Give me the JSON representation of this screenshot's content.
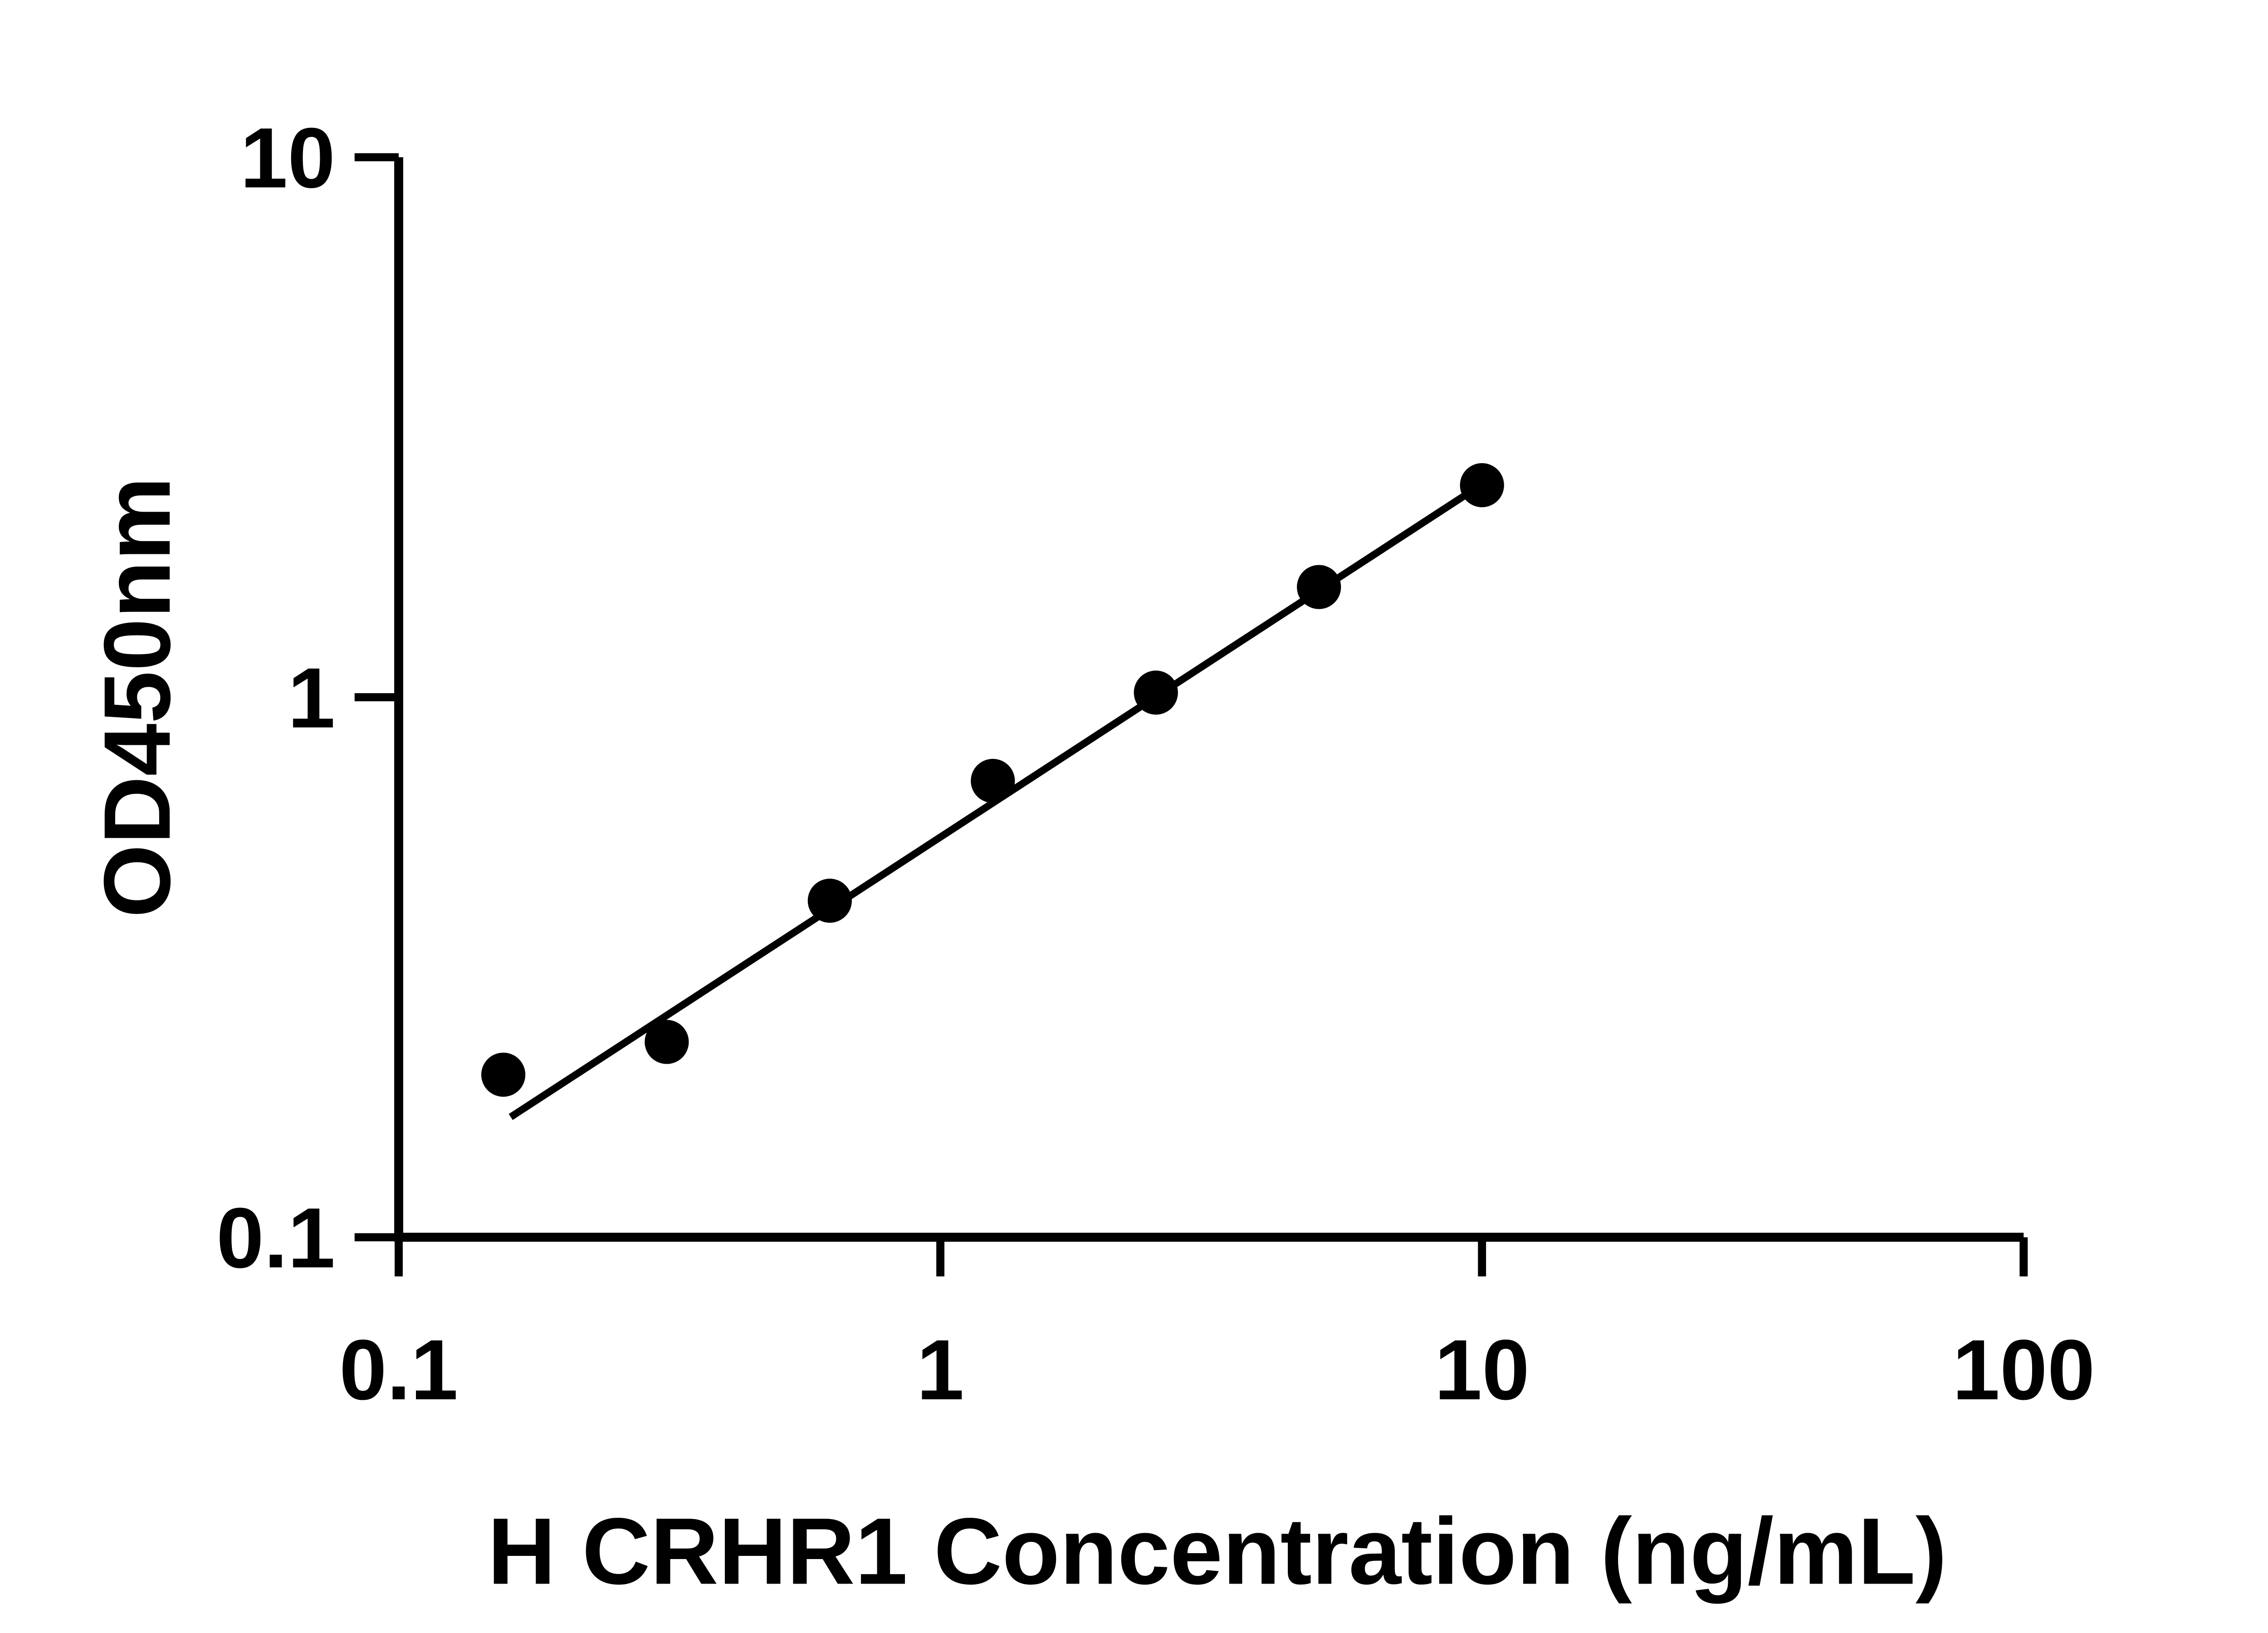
{
  "page": {
    "background": "#ffffff"
  },
  "chart_data": {
    "type": "scatter",
    "title": "",
    "xlabel": "H CRHR1 Concentration (ng/mL)",
    "ylabel": "OD450nm",
    "x_scale": "log",
    "y_scale": "log",
    "xlim": [
      0.1,
      100
    ],
    "ylim": [
      0.1,
      10
    ],
    "x_ticks": [
      0.1,
      1,
      10,
      100
    ],
    "x_tick_labels": [
      "0.1",
      "1",
      "10",
      "100"
    ],
    "y_ticks": [
      0.1,
      1,
      10
    ],
    "y_tick_labels": [
      "0.1",
      "1",
      "10"
    ],
    "grid": false,
    "legend": null,
    "marker_color": "#000000",
    "line_color": "#000000",
    "axis_color": "#000000",
    "series": [
      {
        "marker": "circle",
        "points": [
          {
            "x": 0.156,
            "y": 0.2
          },
          {
            "x": 0.3125,
            "y": 0.23
          },
          {
            "x": 0.625,
            "y": 0.42
          },
          {
            "x": 1.25,
            "y": 0.7
          },
          {
            "x": 2.5,
            "y": 1.02
          },
          {
            "x": 5.0,
            "y": 1.6
          },
          {
            "x": 10.0,
            "y": 2.47
          }
        ]
      }
    ],
    "trendline": {
      "x1": 0.161,
      "y1": 0.167,
      "x2": 9.94,
      "y2": 2.47
    }
  }
}
